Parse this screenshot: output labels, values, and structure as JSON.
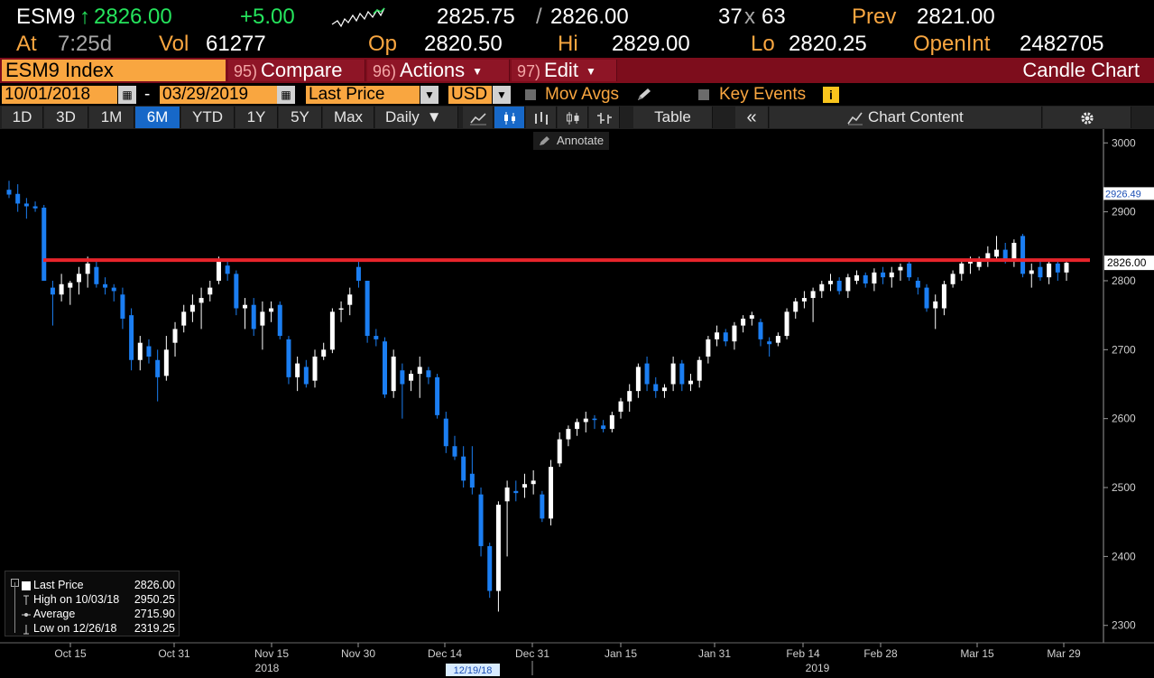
{
  "quote": {
    "ticker": "ESM9",
    "arrow": "↑",
    "last": "2826.00",
    "change": "+5.00",
    "bid": "2825.75",
    "slash": "/",
    "ask": "2826.00",
    "bid_size": "37",
    "size_sep": "x",
    "ask_size": "63",
    "prev_label": "Prev",
    "prev": "2821.00",
    "at_label": "At",
    "time": "7:25d",
    "vol_label": "Vol",
    "vol": "61277",
    "open_label": "Op",
    "open": "2820.50",
    "high_label": "Hi",
    "high": "2829.00",
    "low_label": "Lo",
    "low": "2820.25",
    "oi_label": "OpenInt",
    "oi": "2482705"
  },
  "command_bar": {
    "security": "ESM9 Index",
    "compare_num": "95)",
    "compare": "Compare",
    "actions_num": "96)",
    "actions": "Actions",
    "edit_num": "97)",
    "edit": "Edit",
    "title": "Candle Chart"
  },
  "params": {
    "start_date": "10/01/2018",
    "separator": "-",
    "end_date": "03/29/2019",
    "field": "Last Price",
    "currency": "USD",
    "mov_avgs": "Mov Avgs",
    "key_events": "Key Events",
    "info": "i"
  },
  "toolbar": {
    "periods": [
      "1D",
      "3D",
      "1M",
      "6M",
      "YTD",
      "1Y",
      "5Y",
      "Max"
    ],
    "active_period": "6M",
    "frequency": "Daily",
    "table": "Table",
    "chart_content": "Chart Content"
  },
  "annotate": "Annotate",
  "legend": {
    "rows": [
      {
        "label": "Last Price",
        "value": "2826.00"
      },
      {
        "label": "High on 10/03/18",
        "value": "2950.25"
      },
      {
        "label": "Average",
        "value": "2715.90"
      },
      {
        "label": "Low on 12/26/18",
        "value": "2319.25"
      }
    ]
  },
  "chart_data": {
    "type": "candlestick",
    "y_axis": {
      "min": 2280,
      "max": 3020,
      "side": "right",
      "ticks": [
        3000,
        2900,
        2800,
        2700,
        2600,
        2500,
        2400,
        2300
      ],
      "last_label": "2826.00",
      "marker_label": "2926.49"
    },
    "x_axis": {
      "tick_labels": [
        "Oct 15",
        "Oct 31",
        "Nov 15",
        "Nov 30",
        "Dec 14",
        "Dec 31",
        "Jan 15",
        "Jan 31",
        "Feb 14",
        "Feb 28",
        "Mar 15",
        "Mar 29"
      ],
      "year_labels": [
        "2018",
        "2019"
      ],
      "cursor_label": "12/19/18"
    },
    "horizontal_line": {
      "value": 2830,
      "color": "#e8242b"
    },
    "colors": {
      "up": "#ffffff",
      "down": "#1b7ef2",
      "grid_text": "#cfcfcf"
    },
    "candles": [
      {
        "o": 2932,
        "h": 2945,
        "l": 2920,
        "c": 2925
      },
      {
        "o": 2926,
        "h": 2940,
        "l": 2900,
        "c": 2912
      },
      {
        "o": 2912,
        "h": 2920,
        "l": 2890,
        "c": 2908
      },
      {
        "o": 2908,
        "h": 2915,
        "l": 2900,
        "c": 2905
      },
      {
        "o": 2906,
        "h": 2910,
        "l": 2800,
        "c": 2800
      },
      {
        "o": 2790,
        "h": 2800,
        "l": 2735,
        "c": 2780
      },
      {
        "o": 2780,
        "h": 2810,
        "l": 2770,
        "c": 2795
      },
      {
        "o": 2790,
        "h": 2800,
        "l": 2765,
        "c": 2797
      },
      {
        "o": 2798,
        "h": 2820,
        "l": 2780,
        "c": 2810
      },
      {
        "o": 2810,
        "h": 2835,
        "l": 2790,
        "c": 2825
      },
      {
        "o": 2820,
        "h": 2830,
        "l": 2790,
        "c": 2795
      },
      {
        "o": 2795,
        "h": 2805,
        "l": 2780,
        "c": 2790
      },
      {
        "o": 2790,
        "h": 2795,
        "l": 2770,
        "c": 2785
      },
      {
        "o": 2780,
        "h": 2790,
        "l": 2730,
        "c": 2745
      },
      {
        "o": 2750,
        "h": 2760,
        "l": 2670,
        "c": 2685
      },
      {
        "o": 2685,
        "h": 2720,
        "l": 2670,
        "c": 2710
      },
      {
        "o": 2705,
        "h": 2715,
        "l": 2680,
        "c": 2690
      },
      {
        "o": 2685,
        "h": 2700,
        "l": 2625,
        "c": 2660
      },
      {
        "o": 2662,
        "h": 2720,
        "l": 2655,
        "c": 2700
      },
      {
        "o": 2710,
        "h": 2740,
        "l": 2690,
        "c": 2730
      },
      {
        "o": 2735,
        "h": 2765,
        "l": 2725,
        "c": 2755
      },
      {
        "o": 2755,
        "h": 2780,
        "l": 2740,
        "c": 2765
      },
      {
        "o": 2768,
        "h": 2790,
        "l": 2730,
        "c": 2775
      },
      {
        "o": 2780,
        "h": 2800,
        "l": 2770,
        "c": 2790
      },
      {
        "o": 2800,
        "h": 2835,
        "l": 2795,
        "c": 2830
      },
      {
        "o": 2822,
        "h": 2832,
        "l": 2800,
        "c": 2810
      },
      {
        "o": 2810,
        "h": 2815,
        "l": 2750,
        "c": 2760
      },
      {
        "o": 2760,
        "h": 2775,
        "l": 2730,
        "c": 2765
      },
      {
        "o": 2765,
        "h": 2775,
        "l": 2720,
        "c": 2730
      },
      {
        "o": 2735,
        "h": 2770,
        "l": 2700,
        "c": 2755
      },
      {
        "o": 2755,
        "h": 2770,
        "l": 2740,
        "c": 2760
      },
      {
        "o": 2765,
        "h": 2770,
        "l": 2715,
        "c": 2720
      },
      {
        "o": 2715,
        "h": 2720,
        "l": 2650,
        "c": 2660
      },
      {
        "o": 2660,
        "h": 2690,
        "l": 2640,
        "c": 2680
      },
      {
        "o": 2675,
        "h": 2685,
        "l": 2645,
        "c": 2650
      },
      {
        "o": 2655,
        "h": 2700,
        "l": 2645,
        "c": 2690
      },
      {
        "o": 2690,
        "h": 2710,
        "l": 2685,
        "c": 2700
      },
      {
        "o": 2700,
        "h": 2760,
        "l": 2695,
        "c": 2755
      },
      {
        "o": 2758,
        "h": 2770,
        "l": 2740,
        "c": 2760
      },
      {
        "o": 2765,
        "h": 2790,
        "l": 2750,
        "c": 2780
      },
      {
        "o": 2820,
        "h": 2830,
        "l": 2790,
        "c": 2800
      },
      {
        "o": 2800,
        "h": 2800,
        "l": 2710,
        "c": 2720
      },
      {
        "o": 2720,
        "h": 2730,
        "l": 2705,
        "c": 2715
      },
      {
        "o": 2712,
        "h": 2718,
        "l": 2630,
        "c": 2635
      },
      {
        "o": 2640,
        "h": 2700,
        "l": 2630,
        "c": 2690
      },
      {
        "o": 2670,
        "h": 2680,
        "l": 2600,
        "c": 2650
      },
      {
        "o": 2655,
        "h": 2670,
        "l": 2640,
        "c": 2665
      },
      {
        "o": 2665,
        "h": 2690,
        "l": 2630,
        "c": 2675
      },
      {
        "o": 2670,
        "h": 2675,
        "l": 2650,
        "c": 2660
      },
      {
        "o": 2660,
        "h": 2665,
        "l": 2600,
        "c": 2605
      },
      {
        "o": 2600,
        "h": 2610,
        "l": 2550,
        "c": 2560
      },
      {
        "o": 2560,
        "h": 2575,
        "l": 2540,
        "c": 2545
      },
      {
        "o": 2545,
        "h": 2560,
        "l": 2500,
        "c": 2510
      },
      {
        "o": 2520,
        "h": 2560,
        "l": 2490,
        "c": 2500
      },
      {
        "o": 2490,
        "h": 2500,
        "l": 2400,
        "c": 2415
      },
      {
        "o": 2415,
        "h": 2420,
        "l": 2340,
        "c": 2350
      },
      {
        "o": 2350,
        "h": 2480,
        "l": 2320,
        "c": 2475
      },
      {
        "o": 2480,
        "h": 2510,
        "l": 2400,
        "c": 2500
      },
      {
        "o": 2495,
        "h": 2510,
        "l": 2480,
        "c": 2492
      },
      {
        "o": 2500,
        "h": 2520,
        "l": 2485,
        "c": 2505
      },
      {
        "o": 2505,
        "h": 2525,
        "l": 2490,
        "c": 2510
      },
      {
        "o": 2490,
        "h": 2495,
        "l": 2450,
        "c": 2455
      },
      {
        "o": 2455,
        "h": 2540,
        "l": 2445,
        "c": 2530
      },
      {
        "o": 2535,
        "h": 2580,
        "l": 2530,
        "c": 2570
      },
      {
        "o": 2570,
        "h": 2590,
        "l": 2560,
        "c": 2585
      },
      {
        "o": 2585,
        "h": 2600,
        "l": 2575,
        "c": 2595
      },
      {
        "o": 2595,
        "h": 2610,
        "l": 2580,
        "c": 2600
      },
      {
        "o": 2600,
        "h": 2605,
        "l": 2585,
        "c": 2598
      },
      {
        "o": 2590,
        "h": 2598,
        "l": 2580,
        "c": 2585
      },
      {
        "o": 2585,
        "h": 2610,
        "l": 2580,
        "c": 2605
      },
      {
        "o": 2610,
        "h": 2630,
        "l": 2600,
        "c": 2625
      },
      {
        "o": 2625,
        "h": 2650,
        "l": 2610,
        "c": 2640
      },
      {
        "o": 2640,
        "h": 2680,
        "l": 2630,
        "c": 2675
      },
      {
        "o": 2680,
        "h": 2690,
        "l": 2640,
        "c": 2650
      },
      {
        "o": 2650,
        "h": 2660,
        "l": 2630,
        "c": 2640
      },
      {
        "o": 2640,
        "h": 2650,
        "l": 2630,
        "c": 2645
      },
      {
        "o": 2650,
        "h": 2690,
        "l": 2640,
        "c": 2680
      },
      {
        "o": 2680,
        "h": 2685,
        "l": 2640,
        "c": 2650
      },
      {
        "o": 2650,
        "h": 2665,
        "l": 2640,
        "c": 2655
      },
      {
        "o": 2655,
        "h": 2690,
        "l": 2645,
        "c": 2685
      },
      {
        "o": 2690,
        "h": 2720,
        "l": 2680,
        "c": 2715
      },
      {
        "o": 2715,
        "h": 2735,
        "l": 2705,
        "c": 2725
      },
      {
        "o": 2725,
        "h": 2730,
        "l": 2705,
        "c": 2712
      },
      {
        "o": 2712,
        "h": 2740,
        "l": 2700,
        "c": 2735
      },
      {
        "o": 2735,
        "h": 2750,
        "l": 2725,
        "c": 2745
      },
      {
        "o": 2745,
        "h": 2755,
        "l": 2735,
        "c": 2750
      },
      {
        "o": 2740,
        "h": 2745,
        "l": 2705,
        "c": 2715
      },
      {
        "o": 2712,
        "h": 2718,
        "l": 2690,
        "c": 2708
      },
      {
        "o": 2710,
        "h": 2725,
        "l": 2705,
        "c": 2720
      },
      {
        "o": 2720,
        "h": 2760,
        "l": 2715,
        "c": 2755
      },
      {
        "o": 2755,
        "h": 2775,
        "l": 2745,
        "c": 2770
      },
      {
        "o": 2770,
        "h": 2785,
        "l": 2760,
        "c": 2775
      },
      {
        "o": 2775,
        "h": 2790,
        "l": 2740,
        "c": 2785
      },
      {
        "o": 2785,
        "h": 2800,
        "l": 2775,
        "c": 2795
      },
      {
        "o": 2795,
        "h": 2810,
        "l": 2785,
        "c": 2800
      },
      {
        "o": 2800,
        "h": 2805,
        "l": 2780,
        "c": 2785
      },
      {
        "o": 2785,
        "h": 2810,
        "l": 2775,
        "c": 2805
      },
      {
        "o": 2800,
        "h": 2815,
        "l": 2795,
        "c": 2808
      },
      {
        "o": 2808,
        "h": 2812,
        "l": 2790,
        "c": 2796
      },
      {
        "o": 2796,
        "h": 2818,
        "l": 2785,
        "c": 2812
      },
      {
        "o": 2812,
        "h": 2820,
        "l": 2795,
        "c": 2805
      },
      {
        "o": 2805,
        "h": 2820,
        "l": 2790,
        "c": 2812
      },
      {
        "o": 2815,
        "h": 2825,
        "l": 2800,
        "c": 2820
      },
      {
        "o": 2825,
        "h": 2830,
        "l": 2800,
        "c": 2805
      },
      {
        "o": 2800,
        "h": 2805,
        "l": 2780,
        "c": 2790
      },
      {
        "o": 2790,
        "h": 2795,
        "l": 2755,
        "c": 2760
      },
      {
        "o": 2760,
        "h": 2780,
        "l": 2730,
        "c": 2770
      },
      {
        "o": 2760,
        "h": 2800,
        "l": 2750,
        "c": 2795
      },
      {
        "o": 2795,
        "h": 2815,
        "l": 2790,
        "c": 2810
      },
      {
        "o": 2810,
        "h": 2830,
        "l": 2800,
        "c": 2825
      },
      {
        "o": 2825,
        "h": 2835,
        "l": 2810,
        "c": 2830
      },
      {
        "o": 2820,
        "h": 2835,
        "l": 2815,
        "c": 2830
      },
      {
        "o": 2830,
        "h": 2850,
        "l": 2820,
        "c": 2840
      },
      {
        "o": 2835,
        "h": 2865,
        "l": 2830,
        "c": 2845
      },
      {
        "o": 2845,
        "h": 2855,
        "l": 2825,
        "c": 2830
      },
      {
        "o": 2830,
        "h": 2860,
        "l": 2820,
        "c": 2855
      },
      {
        "o": 2865,
        "h": 2868,
        "l": 2805,
        "c": 2810
      },
      {
        "o": 2810,
        "h": 2825,
        "l": 2790,
        "c": 2815
      },
      {
        "o": 2820,
        "h": 2830,
        "l": 2800,
        "c": 2805
      },
      {
        "o": 2805,
        "h": 2830,
        "l": 2795,
        "c": 2825
      },
      {
        "o": 2825,
        "h": 2830,
        "l": 2800,
        "c": 2812
      },
      {
        "o": 2812,
        "h": 2830,
        "l": 2800,
        "c": 2826
      }
    ]
  }
}
